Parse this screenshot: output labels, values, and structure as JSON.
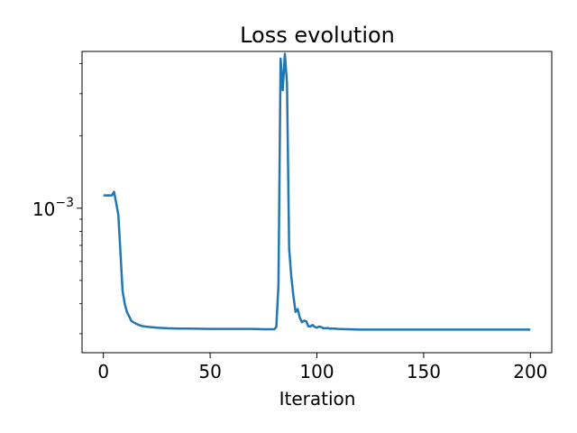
{
  "chart_data": {
    "type": "line",
    "title": "Loss evolution",
    "xlabel": "Iteration",
    "ylabel": "",
    "xlim": [
      -10,
      210
    ],
    "ylim": [
      0.00025,
      0.0045
    ],
    "yscale": "log",
    "grid": false,
    "legend": "none",
    "xticks": [
      0,
      50,
      100,
      150,
      200
    ],
    "xtick_labels": [
      "0",
      "50",
      "100",
      "150",
      "200"
    ],
    "yticks_major": [
      0.001
    ],
    "ytick_labels": [
      "10",
      "−3"
    ],
    "yticks_minor": [
      0.0003,
      0.0004,
      0.0005,
      0.0006,
      0.0007,
      0.0008,
      0.0009,
      0.002,
      0.003,
      0.004
    ],
    "series": [
      {
        "color": "#1f77b4",
        "x": [
          0,
          2,
          4,
          5,
          6,
          7,
          8,
          9,
          10,
          11,
          12,
          13,
          14,
          16,
          18,
          20,
          25,
          30,
          35,
          40,
          50,
          55,
          60,
          65,
          70,
          75,
          80,
          81,
          82,
          83,
          84,
          85,
          86,
          87,
          88,
          89,
          90,
          91,
          92,
          93,
          94,
          95,
          96,
          97,
          98,
          99,
          100,
          101,
          102,
          103,
          104,
          105,
          106,
          108,
          110,
          115,
          120,
          130,
          140,
          150,
          160,
          170,
          180,
          190,
          200
        ],
        "y": [
          0.00113,
          0.00113,
          0.00113,
          0.00117,
          0.00105,
          0.00094,
          0.00065,
          0.00045,
          0.0004,
          0.00037,
          0.000355,
          0.00034,
          0.000335,
          0.000328,
          0.000323,
          0.000321,
          0.000318,
          0.000316,
          0.000315,
          0.000315,
          0.000314,
          0.000314,
          0.000314,
          0.000314,
          0.000314,
          0.000313,
          0.000313,
          0.00032,
          0.00048,
          0.0042,
          0.0031,
          0.0044,
          0.0033,
          0.00068,
          0.00052,
          0.00043,
          0.00037,
          0.00038,
          0.00035,
          0.000335,
          0.00034,
          0.000338,
          0.000322,
          0.000322,
          0.000326,
          0.00032,
          0.000318,
          0.000321,
          0.00032,
          0.000316,
          0.000316,
          0.000317,
          0.000315,
          0.000315,
          0.000314,
          0.000313,
          0.000312,
          0.000312,
          0.000312,
          0.000312,
          0.000312,
          0.000312,
          0.000312,
          0.000312,
          0.000312
        ]
      }
    ]
  }
}
